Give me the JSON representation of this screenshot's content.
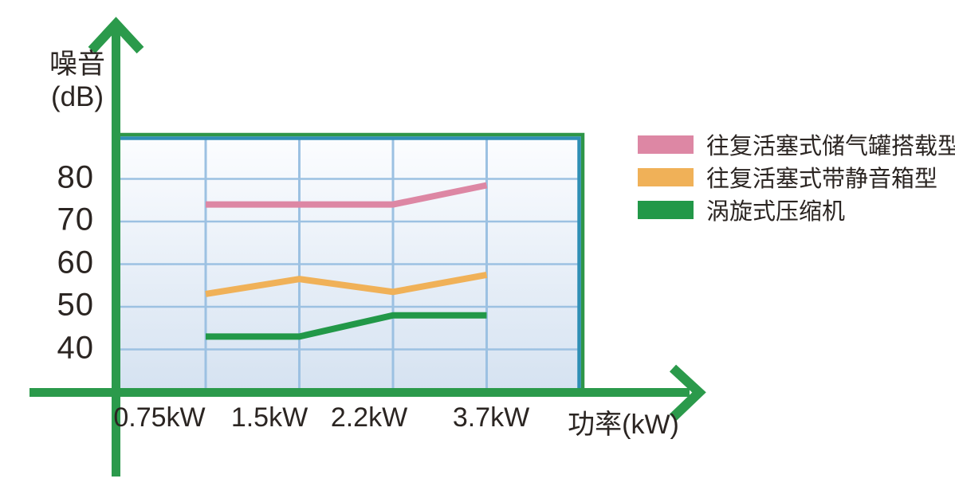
{
  "colors": {
    "axis_green": "#2b9a4b",
    "border_green": "#2e9648",
    "border_teal": "#2f8fb5",
    "grid_blue": "#9cc1e2",
    "plot_bg_top": "#fcfdff",
    "plot_bg_bottom": "#d5e2f1",
    "text": "#2b2522"
  },
  "chart_data": {
    "type": "line",
    "title": "",
    "xlabel": "功率(kW)",
    "ylabel": "噪音(dB)",
    "ylabel_lines": [
      "噪音",
      "(dB)"
    ],
    "categories": [
      "0.75kW",
      "1.5kW",
      "2.2kW",
      "3.7kW"
    ],
    "y_ticks": [
      80,
      70,
      60,
      50,
      40
    ],
    "ylim": [
      30,
      90
    ],
    "grid": true,
    "legend_position": "top-right",
    "series": [
      {
        "name": "往复活塞式储气罐搭载型",
        "color": "#dd87a4",
        "values": [
          74,
          74,
          74,
          78.5
        ]
      },
      {
        "name": "往复活塞式带静音箱型",
        "color": "#f0b158",
        "values": [
          53,
          56.5,
          53.5,
          57.5
        ]
      },
      {
        "name": "涡旋式压缩机",
        "color": "#229848",
        "values": [
          43,
          43,
          48,
          48
        ]
      }
    ]
  }
}
